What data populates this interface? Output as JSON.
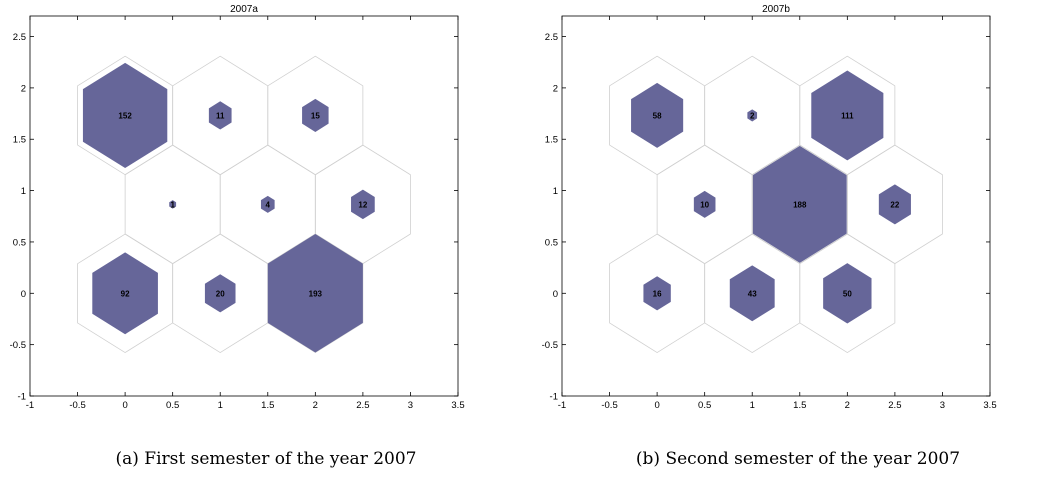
{
  "chart_data": [
    {
      "type": "hexbin",
      "title": "2007a",
      "caption": "(a) First semester of the year 2007",
      "xlim": [
        -1,
        3.5
      ],
      "ylim": [
        -1,
        2.7
      ],
      "xticks": [
        -1,
        -0.5,
        0,
        0.5,
        1,
        1.5,
        2,
        2.5,
        3,
        3.5
      ],
      "xtick_labels": [
        "-1",
        "-0.5",
        "0",
        "0.5",
        "1",
        "1.5",
        "2",
        "2.5",
        "3",
        "3.5"
      ],
      "yticks": [
        -1,
        -0.5,
        0,
        0.5,
        1,
        1.5,
        2,
        2.5
      ],
      "ytick_labels": [
        "-1",
        "-0.5",
        "0",
        "0.5",
        "1",
        "1.5",
        "2",
        "2.5"
      ],
      "grid": false,
      "hex_cell_radius": 0.577,
      "cells": [
        {
          "x": 0,
          "y": 1.732,
          "value": 152
        },
        {
          "x": 1,
          "y": 1.732,
          "value": 11
        },
        {
          "x": 2,
          "y": 1.732,
          "value": 15
        },
        {
          "x": 0.5,
          "y": 0.866,
          "value": 1
        },
        {
          "x": 1.5,
          "y": 0.866,
          "value": 4
        },
        {
          "x": 2.5,
          "y": 0.866,
          "value": 12
        },
        {
          "x": 0,
          "y": 0,
          "value": 92
        },
        {
          "x": 1,
          "y": 0,
          "value": 20
        },
        {
          "x": 2,
          "y": 0,
          "value": 193
        }
      ],
      "max_value": 193,
      "colors": {
        "fill": "#666699",
        "outline": "#d0d0d0"
      }
    },
    {
      "type": "hexbin",
      "title": "2007b",
      "caption": "(b) Second semester of the year 2007",
      "xlim": [
        -1,
        3.5
      ],
      "ylim": [
        -1,
        2.7
      ],
      "xticks": [
        -1,
        -0.5,
        0,
        0.5,
        1,
        1.5,
        2,
        2.5,
        3,
        3.5
      ],
      "xtick_labels": [
        "-1",
        "-0.5",
        "0",
        "0.5",
        "1",
        "1.5",
        "2",
        "2.5",
        "3",
        "3.5"
      ],
      "yticks": [
        -1,
        -0.5,
        0,
        0.5,
        1,
        1.5,
        2,
        2.5
      ],
      "ytick_labels": [
        "-1",
        "-0.5",
        "0",
        "0.5",
        "1",
        "1.5",
        "2",
        "2.5"
      ],
      "grid": false,
      "hex_cell_radius": 0.577,
      "cells": [
        {
          "x": 0,
          "y": 1.732,
          "value": 58
        },
        {
          "x": 1,
          "y": 1.732,
          "value": 2
        },
        {
          "x": 2,
          "y": 1.732,
          "value": 111
        },
        {
          "x": 0.5,
          "y": 0.866,
          "value": 10
        },
        {
          "x": 1.5,
          "y": 0.866,
          "value": 188
        },
        {
          "x": 2.5,
          "y": 0.866,
          "value": 22
        },
        {
          "x": 0,
          "y": 0,
          "value": 16
        },
        {
          "x": 1,
          "y": 0,
          "value": 43
        },
        {
          "x": 2,
          "y": 0,
          "value": 50
        }
      ],
      "max_value": 193,
      "colors": {
        "fill": "#666699",
        "outline": "#d0d0d0"
      }
    }
  ]
}
